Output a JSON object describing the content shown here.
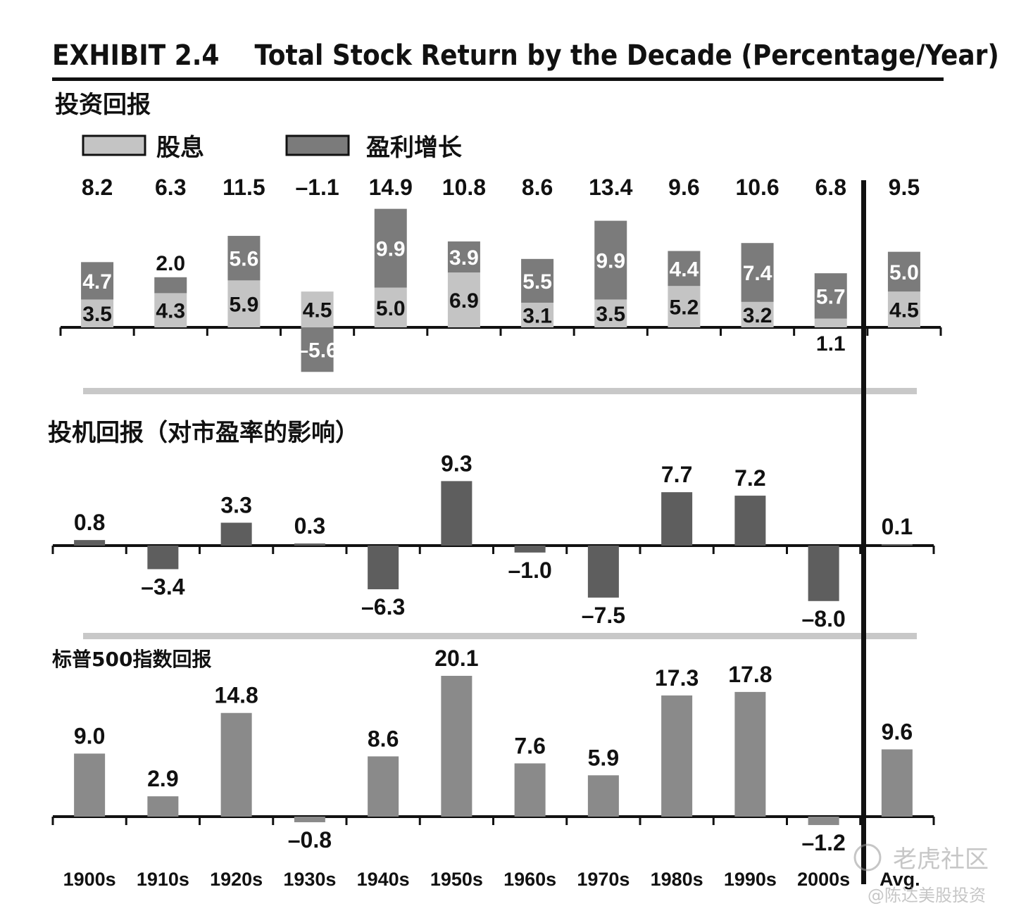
{
  "header": {
    "title": "EXHIBIT 2.4    Total Stock Return by the Decade (Percentage/Year)"
  },
  "sections": {
    "investment": "投资回报",
    "speculative": "投机回报（对市盈率的影响）",
    "sp500": "标普500指数回报"
  },
  "legend": {
    "dividend": "股息",
    "earnings": "盈利增长"
  },
  "watermark": {
    "line1": "老虎社区",
    "line2": "@陈达美股投资"
  },
  "colors": {
    "dividend": "#c4c4c4",
    "earnings": "#7b7b7b",
    "speculative": "#5e5e5e",
    "sp500": "#8a8a8a",
    "separator": "#c8c8c8",
    "axis": "#111111"
  },
  "chart_data": [
    {
      "type": "bar",
      "stacked": true,
      "title": "投资回报",
      "categories": [
        "1900s",
        "1910s",
        "1920s",
        "1930s",
        "1940s",
        "1950s",
        "1960s",
        "1970s",
        "1980s",
        "1990s",
        "2000s",
        "Avg."
      ],
      "totals": [
        "8.2",
        "6.3",
        "11.5",
        "–1.1",
        "14.9",
        "10.8",
        "8.6",
        "13.4",
        "9.6",
        "10.6",
        "6.8",
        "9.5"
      ],
      "series": [
        {
          "name": "股息",
          "values": [
            3.5,
            4.3,
            5.9,
            4.5,
            5.0,
            6.9,
            3.1,
            3.5,
            5.2,
            3.2,
            1.1,
            4.5
          ]
        },
        {
          "name": "盈利增长",
          "values": [
            4.7,
            2.0,
            5.6,
            -5.6,
            9.9,
            3.9,
            5.5,
            9.9,
            4.4,
            7.4,
            5.7,
            5.0
          ]
        }
      ]
    },
    {
      "type": "bar",
      "title": "投机回报（对市盈率的影响）",
      "categories": [
        "1900s",
        "1910s",
        "1920s",
        "1930s",
        "1940s",
        "1950s",
        "1960s",
        "1970s",
        "1980s",
        "1990s",
        "2000s",
        "Avg."
      ],
      "values": [
        0.8,
        -3.4,
        3.3,
        0.3,
        -6.3,
        9.3,
        -1.0,
        -7.5,
        7.7,
        7.2,
        -8.0,
        0.1
      ]
    },
    {
      "type": "bar",
      "title": "标普500指数回报",
      "categories": [
        "1900s",
        "1910s",
        "1920s",
        "1930s",
        "1940s",
        "1950s",
        "1960s",
        "1970s",
        "1980s",
        "1990s",
        "2000s",
        "Avg."
      ],
      "values": [
        9.0,
        2.9,
        14.8,
        -0.8,
        8.6,
        20.1,
        7.6,
        5.9,
        17.3,
        17.8,
        -1.2,
        9.6
      ]
    }
  ]
}
